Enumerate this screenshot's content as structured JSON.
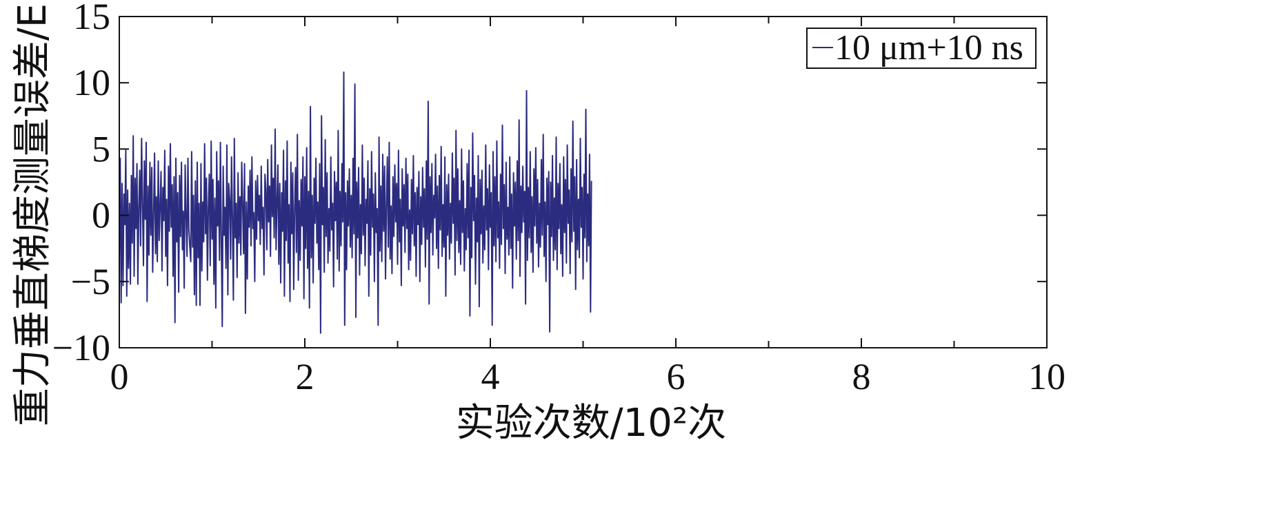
{
  "chart_data": {
    "type": "line",
    "title": "",
    "xlabel": "实验次数/10²次",
    "ylabel": "重力垂直梯度测量误差/E",
    "xlim": [
      0,
      10
    ],
    "ylim": [
      -10,
      15
    ],
    "xticks": [
      0,
      2,
      4,
      6,
      8,
      10
    ],
    "xtick_labels": [
      "0",
      "2",
      "4",
      "6",
      "8",
      "10"
    ],
    "yticks": [
      -10,
      -5,
      0,
      5,
      10,
      15
    ],
    "ytick_labels": [
      "−10",
      "−5",
      "0",
      "5",
      "10",
      "15"
    ],
    "grid": false,
    "legend": {
      "position": "top-right",
      "entries": [
        "10 μm+10 ns"
      ]
    },
    "series": [
      {
        "name": "10 μm+10 ns",
        "color": "#2b2b7f",
        "x_start": 0,
        "x_step": 0.01,
        "values": [
          -3.2,
          4.3,
          -6.6,
          2.4,
          -5.3,
          1.6,
          -0.7,
          4.9,
          -6.1,
          1.9,
          -4.0,
          0.9,
          -5.2,
          3.0,
          -2.1,
          6.0,
          -4.6,
          2.8,
          -1.0,
          3.9,
          -5.2,
          0.5,
          3.4,
          -2.3,
          5.8,
          1.1,
          -3.8,
          4.1,
          -0.3,
          5.5,
          -6.5,
          2.2,
          -3.0,
          4.0,
          -1.5,
          3.6,
          -4.3,
          0.2,
          4.7,
          -2.9,
          1.4,
          -3.5,
          4.1,
          -1.9,
          0.8,
          3.3,
          -4.2,
          2.1,
          -0.4,
          4.9,
          -3.1,
          1.2,
          -5.3,
          3.7,
          -1.2,
          5.4,
          -0.9,
          2.3,
          -4.6,
          2.9,
          -8.1,
          4.3,
          -2.0,
          1.7,
          -5.8,
          3.0,
          -1.6,
          4.0,
          -2.6,
          0.3,
          -5.5,
          3.8,
          0.1,
          -3.1,
          4.3,
          -1.1,
          -2.3,
          -3.5,
          4.8,
          -2.4,
          1.5,
          -6.0,
          2.6,
          -6.8,
          4.0,
          -3.2,
          0.9,
          -6.8,
          3.9,
          -4.2,
          1.0,
          -2.0,
          5.4,
          -1.4,
          2.8,
          -4.9,
          0.6,
          3.1,
          -3.8,
          5.6,
          -1.8,
          2.7,
          -5.2,
          1.3,
          -7.0,
          4.8,
          -0.8,
          2.6,
          -3.4,
          5.5,
          -2.2,
          -8.4,
          3.7,
          -1.5,
          0.6,
          -4.0,
          5.3,
          -6.0,
          2.4,
          1.1,
          -3.3,
          4.4,
          -0.5,
          -6.4,
          5.8,
          -1.7,
          0.9,
          -4.7,
          3.2,
          -2.1,
          1.4,
          -3.0,
          4.0,
          0.8,
          -2.9,
          3.9,
          -7.4,
          1.0,
          -4.8,
          2.2,
          -0.9,
          3.4,
          -2.3,
          4.4,
          -1.0,
          0.2,
          -5.0,
          2.6,
          -1.8,
          3.0,
          -0.4,
          1.5,
          -2.2,
          3.7,
          -1.0,
          0.6,
          -4.5,
          3.1,
          1.9,
          -2.6,
          4.2,
          -0.5,
          2.2,
          -3.1,
          5.3,
          -0.1,
          2.8,
          -1.7,
          6.5,
          -2.6,
          0.9,
          3.8,
          -3.7,
          2.4,
          -5.1,
          1.7,
          -1.2,
          4.9,
          -6.1,
          2.6,
          -1.9,
          5.6,
          -3.6,
          0.8,
          -6.5,
          4.0,
          -1.4,
          3.2,
          -5.6,
          0.4,
          3.6,
          -2.8,
          6.1,
          -4.9,
          1.1,
          -3.4,
          2.7,
          -0.8,
          4.4,
          -6.3,
          2.9,
          -2.5,
          5.1,
          -4.0,
          1.8,
          -7.0,
          8.2,
          -3.2,
          1.5,
          -5.1,
          2.8,
          -0.6,
          4.3,
          -2.1,
          1.0,
          -4.1,
          3.9,
          -8.9,
          7.5,
          -0.7,
          2.1,
          -4.3,
          5.7,
          -1.6,
          3.2,
          -3.6,
          0.5,
          -2.7,
          4.4,
          -1.1,
          0.9,
          -5.4,
          3.3,
          -0.4,
          2.5,
          -3.3,
          6.4,
          -4.2,
          1.8,
          -2.3,
          3.9,
          -0.5,
          10.8,
          -8.3,
          1.7,
          -4.1,
          2.6,
          -0.8,
          3.5,
          -2.4,
          1.5,
          -3.2,
          4.3,
          -1.4,
          9.9,
          -7.7,
          2.5,
          -1.7,
          3.6,
          -4.5,
          0.8,
          -2.9,
          5.3,
          -1.5,
          2.8,
          -3.8,
          1.2,
          -0.6,
          4.1,
          -6.1,
          2.0,
          -3.0,
          4.8,
          -0.9,
          1.6,
          -5.0,
          3.2,
          -1.3,
          0.5,
          -8.3,
          5.9,
          -2.7,
          2.2,
          -3.5,
          4.6,
          -1.2,
          3.7,
          -4.8,
          1.0,
          4.4,
          -2.4,
          5.5,
          -3.3,
          0.7,
          -4.4,
          2.9,
          -1.6,
          3.8,
          -0.5,
          2.4,
          -3.7,
          4.9,
          -2.0,
          1.2,
          -5.3,
          3.5,
          -0.8,
          2.3,
          -2.8,
          4.3,
          -1.0,
          3.1,
          -4.1,
          0.4,
          -3.4,
          2.7,
          -1.4,
          4.5,
          -2.3,
          1.7,
          -4.6,
          2.1,
          -0.7,
          3.3,
          -5.0,
          1.4,
          -2.2,
          3.6,
          -0.9,
          2.0,
          -3.9,
          4.1,
          -1.8,
          8.6,
          -6.7,
          2.9,
          -1.3,
          3.9,
          -3.0,
          1.5,
          -0.2,
          4.6,
          -2.5,
          2.2,
          -4.0,
          3.0,
          -1.1,
          5.2,
          -3.1,
          0.8,
          -2.4,
          4.4,
          -6.1,
          2.3,
          -1.5,
          3.1,
          -3.3,
          0.9,
          -2.1,
          4.7,
          -0.6,
          2.8,
          -4.5,
          6.4,
          -1.9,
          3.5,
          -2.8,
          1.1,
          -3.7,
          5.0,
          -1.3,
          2.6,
          -4.2,
          0.5,
          -2.6,
          3.9,
          -1.7,
          4.9,
          -7.6,
          2.1,
          -3.2,
          6.2,
          -0.4,
          3.0,
          -5.2,
          1.3,
          -2.0,
          4.5,
          -6.9,
          2.7,
          -1.4,
          3.4,
          -3.6,
          0.7,
          -2.6,
          5.3,
          -1.1,
          2.0,
          -4.1,
          3.8,
          -0.9,
          1.7,
          -8.3,
          4.8,
          -2.3,
          2.9,
          -3.5,
          5.6,
          -1.7,
          1.0,
          -4.0,
          3.1,
          -2.2,
          6.8,
          -1.0,
          2.3,
          -4.4,
          4.0,
          -1.8,
          0.6,
          -3.0,
          4.4,
          -2.5,
          1.6,
          -5.5,
          3.2,
          -0.8,
          2.5,
          -3.3,
          4.1,
          -1.9,
          7.2,
          -4.6,
          2.2,
          -1.3,
          3.7,
          -0.5,
          1.8,
          -6.7,
          9.4,
          -3.4,
          2.1,
          -1.7,
          4.8,
          -2.8,
          1.4,
          -4.3,
          3.5,
          -0.8,
          5.1,
          -2.1,
          2.7,
          -3.9,
          0.9,
          -2.4,
          4.2,
          -1.5,
          6.1,
          -3.1,
          1.0,
          -5.0,
          2.8,
          -0.7,
          3.3,
          -8.8,
          2.5,
          -1.6,
          4.5,
          -3.4,
          1.3,
          -2.6,
          5.9,
          -4.1,
          2.4,
          -1.0,
          3.9,
          -2.9,
          0.8,
          -4.6,
          4.4,
          -1.3,
          2.7,
          -3.6,
          5.3,
          -0.6,
          1.9,
          -4.4,
          3.5,
          -2.0,
          7.1,
          -1.2,
          2.9,
          -5.6,
          4.2,
          -2.6,
          1.2,
          -3.2,
          5.8,
          -0.9,
          2.1,
          -4.8,
          3.1,
          -1.7,
          8.0,
          -3.5,
          1.6,
          -2.3,
          4.6,
          -7.3,
          2.6
        ]
      }
    ]
  }
}
